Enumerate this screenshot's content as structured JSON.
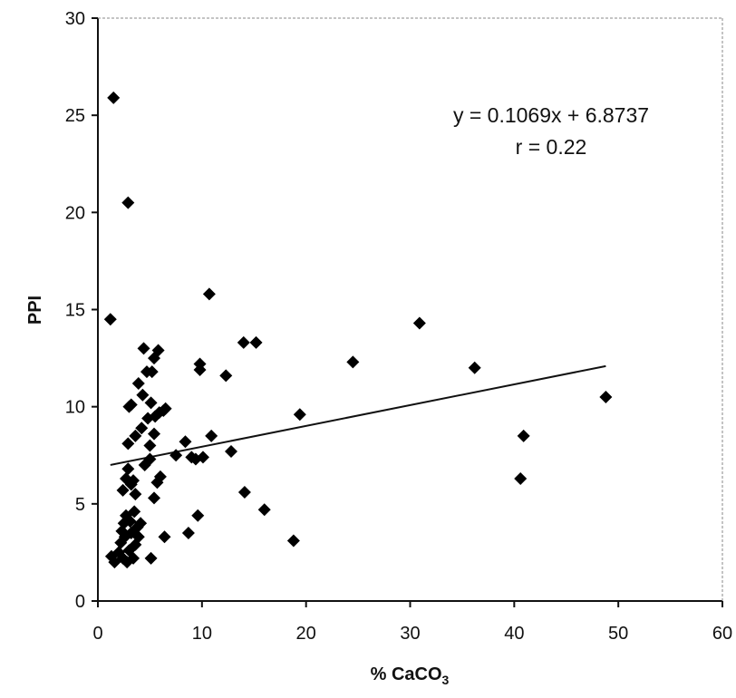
{
  "chart_data": {
    "type": "scatter",
    "xlabel": "% CaCO",
    "xlabel_sub": "3",
    "ylabel": "PPI",
    "xlim": [
      0,
      60
    ],
    "ylim": [
      0,
      30
    ],
    "x_ticks": [
      "0",
      "10",
      "20",
      "30",
      "40",
      "50",
      "60"
    ],
    "y_ticks": [
      "0",
      "5",
      "10",
      "15",
      "20",
      "25",
      "30"
    ],
    "grid": false,
    "marker_color": "#000000",
    "annotation": {
      "equation": "y = 0.1069x + 6.8737",
      "r": "r = 0.22"
    },
    "trendline": {
      "slope": 0.1069,
      "intercept": 6.8737,
      "x_range": [
        1.2,
        48.8
      ]
    },
    "points": [
      [
        1.5,
        25.9
      ],
      [
        2.9,
        20.5
      ],
      [
        1.2,
        14.5
      ],
      [
        1.3,
        2.3
      ],
      [
        1.6,
        2.0
      ],
      [
        2.0,
        2.5
      ],
      [
        2.2,
        3.0
      ],
      [
        2.4,
        2.2
      ],
      [
        2.6,
        3.3
      ],
      [
        2.8,
        2.0
      ],
      [
        3.0,
        2.6
      ],
      [
        3.2,
        3.5
      ],
      [
        3.4,
        2.2
      ],
      [
        3.6,
        2.9
      ],
      [
        3.8,
        3.8
      ],
      [
        2.3,
        3.6
      ],
      [
        2.5,
        4.0
      ],
      [
        2.7,
        4.4
      ],
      [
        3.1,
        4.1
      ],
      [
        3.5,
        4.6
      ],
      [
        3.9,
        3.3
      ],
      [
        4.1,
        4.0
      ],
      [
        2.4,
        5.7
      ],
      [
        2.7,
        6.3
      ],
      [
        3.2,
        6.0
      ],
      [
        3.6,
        5.5
      ],
      [
        2.9,
        6.8
      ],
      [
        3.4,
        6.2
      ],
      [
        2.9,
        8.1
      ],
      [
        3.6,
        8.5
      ],
      [
        4.2,
        8.9
      ],
      [
        3.0,
        10.0
      ],
      [
        3.2,
        10.1
      ],
      [
        3.9,
        11.2
      ],
      [
        4.3,
        10.6
      ],
      [
        4.4,
        13.0
      ],
      [
        4.7,
        11.8
      ],
      [
        5.2,
        11.8
      ],
      [
        5.4,
        12.5
      ],
      [
        5.1,
        10.2
      ],
      [
        4.8,
        9.4
      ],
      [
        4.5,
        7.0
      ],
      [
        5.0,
        7.3
      ],
      [
        5.0,
        8.0
      ],
      [
        5.4,
        8.6
      ],
      [
        5.5,
        9.5
      ],
      [
        5.9,
        9.7
      ],
      [
        6.3,
        9.8
      ],
      [
        6.5,
        9.9
      ],
      [
        5.8,
        12.9
      ],
      [
        5.1,
        2.2
      ],
      [
        5.4,
        5.3
      ],
      [
        5.7,
        6.1
      ],
      [
        6.0,
        6.4
      ],
      [
        6.4,
        3.3
      ],
      [
        7.5,
        7.5
      ],
      [
        8.4,
        8.2
      ],
      [
        8.7,
        3.5
      ],
      [
        9.0,
        7.4
      ],
      [
        9.4,
        7.3
      ],
      [
        9.6,
        4.4
      ],
      [
        9.8,
        12.2
      ],
      [
        9.8,
        11.9
      ],
      [
        10.1,
        7.4
      ],
      [
        10.7,
        15.8
      ],
      [
        10.9,
        8.5
      ],
      [
        12.3,
        11.6
      ],
      [
        12.8,
        7.7
      ],
      [
        14.0,
        13.3
      ],
      [
        14.1,
        5.6
      ],
      [
        15.2,
        13.3
      ],
      [
        16.0,
        4.7
      ],
      [
        18.8,
        3.1
      ],
      [
        19.4,
        9.6
      ],
      [
        24.5,
        12.3
      ],
      [
        30.9,
        14.3
      ],
      [
        36.2,
        12.0
      ],
      [
        40.6,
        6.3
      ],
      [
        40.9,
        8.5
      ],
      [
        48.8,
        10.5
      ]
    ]
  }
}
